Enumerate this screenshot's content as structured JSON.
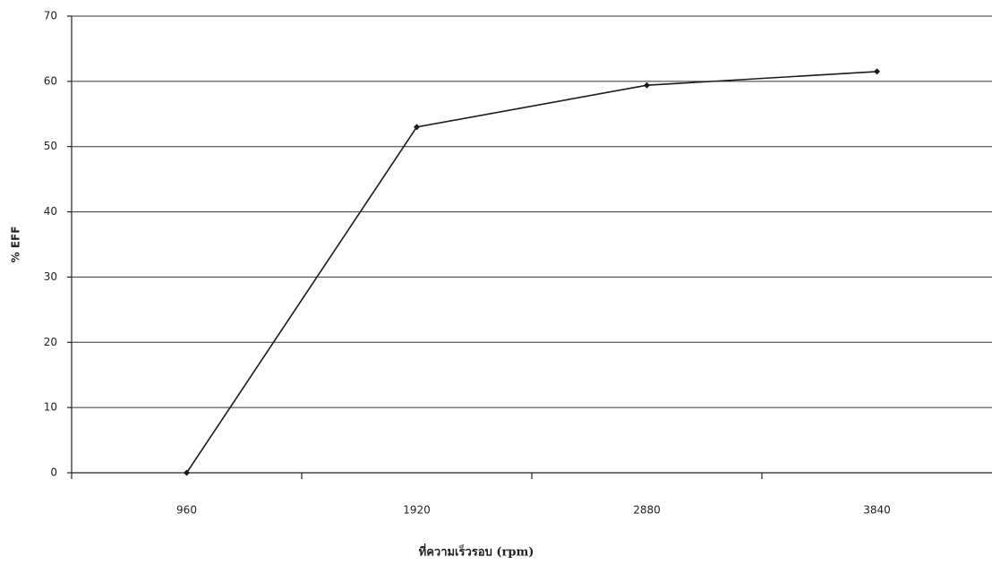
{
  "chart_data": {
    "type": "line",
    "categories": [
      "960",
      "1920",
      "2880",
      "3840"
    ],
    "series": [
      {
        "name": "% EFF",
        "color": "#1a1a1a",
        "values": [
          0,
          53,
          59.4,
          61.5
        ]
      }
    ],
    "ylim": [
      0,
      70
    ],
    "yticks": [
      0,
      10,
      20,
      30,
      40,
      50,
      60,
      70
    ],
    "y_label": "% EFF",
    "x_label": "ที่ความเร็วรอบ (rpm)",
    "grid": true
  }
}
